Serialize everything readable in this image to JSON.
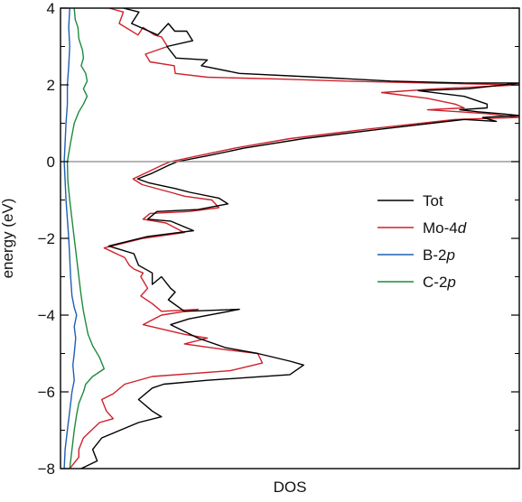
{
  "chart_data": {
    "type": "line",
    "title": "",
    "xlabel": "DOS",
    "ylabel": "energy (eV)",
    "ylim": [
      -8,
      4
    ],
    "yticks": [
      -8,
      -6,
      -4,
      -2,
      0,
      2,
      4
    ],
    "ytick_labels": [
      "−8",
      "−6",
      "−4",
      "−2",
      "0",
      "2",
      "4"
    ],
    "xlim": [
      0,
      1
    ],
    "x_tick_labels_shown": false,
    "fermi_level": 0,
    "legend": {
      "placement": "right",
      "entries": [
        {
          "series": "Tot",
          "prefix": "Tot",
          "orbital": ""
        },
        {
          "series": "Mo-4d",
          "prefix": "Mo-4",
          "orbital": "d"
        },
        {
          "series": "B-2p",
          "prefix": "B-2",
          "orbital": "p"
        },
        {
          "series": "C-2p",
          "prefix": "C-2",
          "orbital": "p"
        }
      ]
    },
    "series": [
      {
        "name": "Tot",
        "color": "#000000",
        "points": [
          [
            0.137,
            4.0
          ],
          [
            0.171,
            3.9
          ],
          [
            0.155,
            3.6
          ],
          [
            0.212,
            3.3
          ],
          [
            0.235,
            3.6
          ],
          [
            0.249,
            3.4
          ],
          [
            0.275,
            3.4
          ],
          [
            0.288,
            3.15
          ],
          [
            0.232,
            3.0
          ],
          [
            0.252,
            2.7
          ],
          [
            0.32,
            2.65
          ],
          [
            0.307,
            2.5
          ],
          [
            0.39,
            2.3
          ],
          [
            0.56,
            2.2
          ],
          [
            0.72,
            2.1
          ],
          [
            0.88,
            2.05
          ],
          [
            1.0,
            2.05
          ],
          [
            0.89,
            1.9
          ],
          [
            0.78,
            1.85
          ],
          [
            0.88,
            1.7
          ],
          [
            0.93,
            1.5
          ],
          [
            0.93,
            1.4
          ],
          [
            0.87,
            1.35
          ],
          [
            0.91,
            1.3
          ],
          [
            0.96,
            1.25
          ],
          [
            1.0,
            1.2
          ],
          [
            0.92,
            1.15
          ],
          [
            0.95,
            1.05
          ],
          [
            0.88,
            1.1
          ],
          [
            0.7,
            0.85
          ],
          [
            0.53,
            0.6
          ],
          [
            0.4,
            0.35
          ],
          [
            0.32,
            0.15
          ],
          [
            0.255,
            0.0
          ],
          [
            0.235,
            -0.1
          ],
          [
            0.2,
            -0.3
          ],
          [
            0.168,
            -0.45
          ],
          [
            0.192,
            -0.55
          ],
          [
            0.25,
            -0.7
          ],
          [
            0.282,
            -0.8
          ],
          [
            0.345,
            -0.95
          ],
          [
            0.365,
            -1.1
          ],
          [
            0.3,
            -1.25
          ],
          [
            0.21,
            -1.3
          ],
          [
            0.19,
            -1.5
          ],
          [
            0.24,
            -1.55
          ],
          [
            0.29,
            -1.8
          ],
          [
            0.19,
            -1.95
          ],
          [
            0.105,
            -2.2
          ],
          [
            0.16,
            -2.4
          ],
          [
            0.17,
            -2.7
          ],
          [
            0.2,
            -2.9
          ],
          [
            0.2,
            -3.2
          ],
          [
            0.22,
            -3.0
          ],
          [
            0.24,
            -3.3
          ],
          [
            0.25,
            -3.4
          ],
          [
            0.235,
            -3.6
          ],
          [
            0.27,
            -3.9
          ],
          [
            0.39,
            -3.85
          ],
          [
            0.28,
            -4.1
          ],
          [
            0.24,
            -4.25
          ],
          [
            0.3,
            -4.6
          ],
          [
            0.36,
            -4.85
          ],
          [
            0.43,
            -5.0
          ],
          [
            0.5,
            -5.2
          ],
          [
            0.53,
            -5.3
          ],
          [
            0.5,
            -5.55
          ],
          [
            0.32,
            -5.7
          ],
          [
            0.225,
            -5.8
          ],
          [
            0.2,
            -5.9
          ],
          [
            0.17,
            -6.2
          ],
          [
            0.2,
            -6.5
          ],
          [
            0.22,
            -6.65
          ],
          [
            0.17,
            -6.8
          ],
          [
            0.09,
            -7.2
          ],
          [
            0.07,
            -7.5
          ],
          [
            0.08,
            -7.8
          ],
          [
            0.045,
            -8.0
          ]
        ]
      },
      {
        "name": "Mo-4d",
        "color": "#d0202a",
        "points": [
          [
            0.106,
            4.0
          ],
          [
            0.137,
            3.9
          ],
          [
            0.128,
            3.6
          ],
          [
            0.169,
            3.3
          ],
          [
            0.18,
            3.5
          ],
          [
            0.205,
            3.3
          ],
          [
            0.22,
            3.25
          ],
          [
            0.233,
            3.0
          ],
          [
            0.185,
            2.8
          ],
          [
            0.195,
            2.6
          ],
          [
            0.248,
            2.5
          ],
          [
            0.25,
            2.3
          ],
          [
            0.32,
            2.2
          ],
          [
            0.48,
            2.15
          ],
          [
            0.62,
            2.1
          ],
          [
            0.8,
            2.05
          ],
          [
            1.0,
            2.0
          ],
          [
            0.82,
            1.9
          ],
          [
            0.7,
            1.8
          ],
          [
            0.8,
            1.65
          ],
          [
            0.86,
            1.5
          ],
          [
            0.88,
            1.4
          ],
          [
            0.8,
            1.35
          ],
          [
            0.87,
            1.3
          ],
          [
            0.93,
            1.25
          ],
          [
            1.0,
            1.15
          ],
          [
            0.86,
            1.1
          ],
          [
            0.67,
            0.85
          ],
          [
            0.5,
            0.6
          ],
          [
            0.38,
            0.35
          ],
          [
            0.3,
            0.15
          ],
          [
            0.24,
            0.0
          ],
          [
            0.22,
            -0.1
          ],
          [
            0.185,
            -0.3
          ],
          [
            0.158,
            -0.45
          ],
          [
            0.178,
            -0.6
          ],
          [
            0.24,
            -0.8
          ],
          [
            0.27,
            -0.9
          ],
          [
            0.33,
            -1.0
          ],
          [
            0.345,
            -1.2
          ],
          [
            0.28,
            -1.3
          ],
          [
            0.195,
            -1.35
          ],
          [
            0.18,
            -1.5
          ],
          [
            0.23,
            -1.6
          ],
          [
            0.27,
            -1.85
          ],
          [
            0.18,
            -2.0
          ],
          [
            0.095,
            -2.25
          ],
          [
            0.14,
            -2.5
          ],
          [
            0.15,
            -2.7
          ],
          [
            0.16,
            -2.8
          ],
          [
            0.18,
            -2.9
          ],
          [
            0.175,
            -3.0
          ],
          [
            0.19,
            -3.3
          ],
          [
            0.175,
            -3.5
          ],
          [
            0.2,
            -3.7
          ],
          [
            0.22,
            -3.9
          ],
          [
            0.3,
            -3.85
          ],
          [
            0.22,
            -4.0
          ],
          [
            0.18,
            -4.25
          ],
          [
            0.27,
            -4.5
          ],
          [
            0.32,
            -4.6
          ],
          [
            0.27,
            -4.75
          ],
          [
            0.36,
            -4.9
          ],
          [
            0.43,
            -5.0
          ],
          [
            0.44,
            -5.25
          ],
          [
            0.37,
            -5.45
          ],
          [
            0.2,
            -5.6
          ],
          [
            0.14,
            -5.8
          ],
          [
            0.115,
            -6.05
          ],
          [
            0.09,
            -6.2
          ],
          [
            0.1,
            -6.5
          ],
          [
            0.115,
            -6.7
          ],
          [
            0.085,
            -6.8
          ],
          [
            0.05,
            -7.2
          ],
          [
            0.04,
            -7.5
          ],
          [
            0.04,
            -7.7
          ],
          [
            0.02,
            -8.0
          ]
        ]
      },
      {
        "name": "B-2p",
        "color": "#1f5fb4",
        "points": [
          [
            0.02,
            4.0
          ],
          [
            0.018,
            3.5
          ],
          [
            0.02,
            3.0
          ],
          [
            0.018,
            2.5
          ],
          [
            0.015,
            2.0
          ],
          [
            0.015,
            1.5
          ],
          [
            0.012,
            1.0
          ],
          [
            0.01,
            0.5
          ],
          [
            0.008,
            0.0
          ],
          [
            0.01,
            -0.5
          ],
          [
            0.012,
            -1.0
          ],
          [
            0.015,
            -1.5
          ],
          [
            0.018,
            -2.0
          ],
          [
            0.02,
            -2.5
          ],
          [
            0.022,
            -3.0
          ],
          [
            0.025,
            -3.5
          ],
          [
            0.03,
            -3.8
          ],
          [
            0.035,
            -4.0
          ],
          [
            0.03,
            -4.3
          ],
          [
            0.033,
            -4.6
          ],
          [
            0.03,
            -5.0
          ],
          [
            0.027,
            -5.3
          ],
          [
            0.03,
            -5.7
          ],
          [
            0.025,
            -6.0
          ],
          [
            0.02,
            -6.5
          ],
          [
            0.015,
            -7.0
          ],
          [
            0.01,
            -7.5
          ],
          [
            0.008,
            -8.0
          ]
        ]
      },
      {
        "name": "C-2p",
        "color": "#1e8a3c",
        "points": [
          [
            0.03,
            4.0
          ],
          [
            0.032,
            3.7
          ],
          [
            0.038,
            3.5
          ],
          [
            0.04,
            3.2
          ],
          [
            0.048,
            2.9
          ],
          [
            0.05,
            2.7
          ],
          [
            0.045,
            2.5
          ],
          [
            0.055,
            2.3
          ],
          [
            0.058,
            2.1
          ],
          [
            0.05,
            1.9
          ],
          [
            0.058,
            1.7
          ],
          [
            0.05,
            1.5
          ],
          [
            0.04,
            1.3
          ],
          [
            0.03,
            1.0
          ],
          [
            0.022,
            0.5
          ],
          [
            0.015,
            0.0
          ],
          [
            0.016,
            -0.5
          ],
          [
            0.02,
            -1.0
          ],
          [
            0.025,
            -1.5
          ],
          [
            0.03,
            -2.0
          ],
          [
            0.035,
            -2.5
          ],
          [
            0.04,
            -3.0
          ],
          [
            0.045,
            -3.5
          ],
          [
            0.05,
            -3.9
          ],
          [
            0.055,
            -4.2
          ],
          [
            0.06,
            -4.5
          ],
          [
            0.07,
            -4.8
          ],
          [
            0.085,
            -5.1
          ],
          [
            0.095,
            -5.4
          ],
          [
            0.07,
            -5.6
          ],
          [
            0.055,
            -5.8
          ],
          [
            0.05,
            -6.0
          ],
          [
            0.04,
            -6.3
          ],
          [
            0.035,
            -6.6
          ],
          [
            0.03,
            -7.0
          ],
          [
            0.025,
            -7.5
          ],
          [
            0.02,
            -8.0
          ]
        ]
      }
    ]
  }
}
